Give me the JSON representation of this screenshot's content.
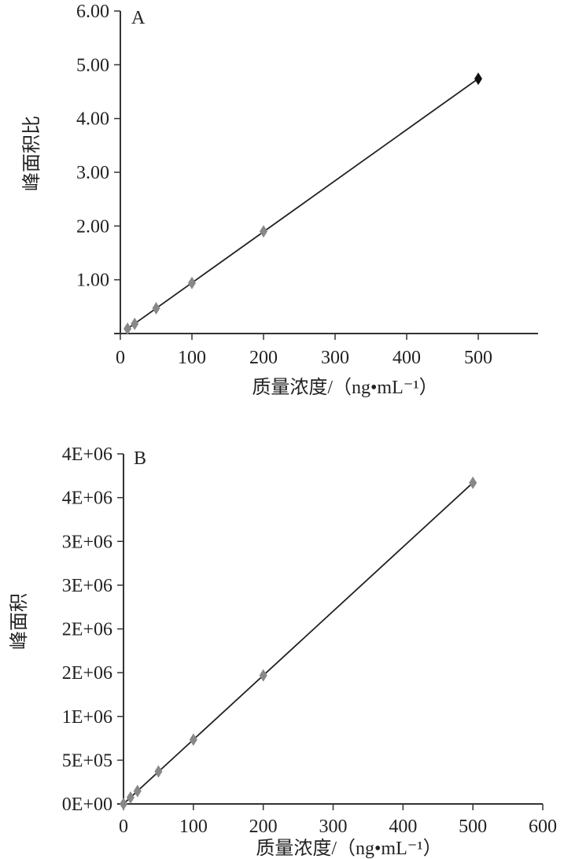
{
  "chart_data": [
    {
      "type": "scatter",
      "panel_label": "A",
      "xlabel": "质量浓度/（ng•mL⁻¹）",
      "ylabel": "峰面积比",
      "xlim": [
        0,
        580
      ],
      "ylim": [
        0,
        6
      ],
      "xticks": [
        "0",
        "100",
        "200",
        "300",
        "400",
        "500"
      ],
      "xtick_values": [
        0,
        100,
        200,
        300,
        400,
        500
      ],
      "yticks": [
        "1.00",
        "2.00",
        "3.00",
        "4.00",
        "5.00",
        "6.00"
      ],
      "ytick_values": [
        1,
        2,
        3,
        4,
        5,
        6
      ],
      "grid": false,
      "trendline": "linear",
      "marker": "diamond",
      "marker_color": "#888888",
      "last_marker_color": "#111111",
      "series": [
        {
          "x": [
            10,
            20,
            50,
            100,
            200,
            500
          ],
          "y": [
            0.09,
            0.18,
            0.47,
            0.94,
            1.9,
            4.74
          ]
        }
      ]
    },
    {
      "type": "scatter",
      "panel_label": "B",
      "xlabel": "质量浓度/（ng•mL⁻¹）",
      "ylabel": "峰面积",
      "xlim": [
        0,
        600
      ],
      "ylim": [
        0,
        4000000
      ],
      "xticks": [
        "0",
        "100",
        "200",
        "300",
        "400",
        "500",
        "600"
      ],
      "xtick_values": [
        0,
        100,
        200,
        300,
        400,
        500,
        600
      ],
      "yticks": [
        "0E+00",
        "5E+05",
        "1E+06",
        "2E+06",
        "2E+06",
        "3E+06",
        "3E+06",
        "4E+06",
        "4E+06"
      ],
      "ytick_values": [
        0,
        500000,
        1000000,
        1500000,
        2000000,
        2500000,
        3000000,
        3500000,
        4000000
      ],
      "grid": false,
      "trendline": "linear",
      "marker": "diamond",
      "marker_color": "#888888",
      "series": [
        {
          "x": [
            0,
            10,
            20,
            50,
            100,
            200,
            500
          ],
          "y": [
            0,
            73000,
            147000,
            371000,
            735000,
            1468000,
            3670000
          ]
        }
      ]
    }
  ]
}
